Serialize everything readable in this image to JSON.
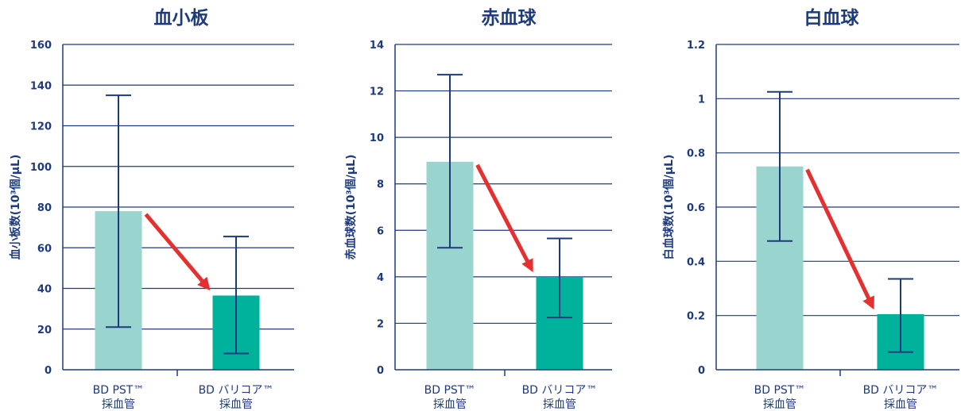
{
  "colors": {
    "axis": "#1d3a7c",
    "grid": "#1d3a7c",
    "bar_pst": "#99d4cf",
    "bar_vari": "#00b29b",
    "arrow": "#e53030"
  },
  "chart_data": [
    {
      "type": "bar",
      "title": "血小板",
      "ylabel": "血小板数(10³個/μL)",
      "xlabel": "",
      "ylim": [
        0,
        160
      ],
      "yticks": [
        "0",
        "20",
        "40",
        "60",
        "80",
        "100",
        "120",
        "140",
        "160"
      ],
      "categories": [
        [
          "BD PST™",
          "採血管"
        ],
        [
          "BD バリコア™",
          "採血管"
        ]
      ],
      "values": [
        78,
        36.5
      ],
      "error_low": [
        21,
        8
      ],
      "error_high": [
        135,
        65.5
      ],
      "grid": true,
      "trend_arrow": true
    },
    {
      "type": "bar",
      "title": "赤血球",
      "ylabel": "赤血球数(10³個/μL)",
      "xlabel": "",
      "ylim": [
        0,
        14
      ],
      "yticks": [
        "0",
        "2",
        "4",
        "6",
        "8",
        "10",
        "12",
        "14"
      ],
      "categories": [
        [
          "BD PST™",
          "採血管"
        ],
        [
          "BD バリコア™",
          "採血管"
        ]
      ],
      "values": [
        8.95,
        4.0
      ],
      "error_low": [
        5.25,
        2.25
      ],
      "error_high": [
        12.7,
        5.65
      ],
      "grid": true,
      "trend_arrow": true
    },
    {
      "type": "bar",
      "title": "白血球",
      "ylabel": "白血球数(10³個/μL)",
      "xlabel": "",
      "ylim": [
        0,
        1.2
      ],
      "yticks": [
        "0",
        "0.2",
        "0.4",
        "0.6",
        "0.8",
        "1",
        "1.2"
      ],
      "categories": [
        [
          "BD PST™",
          "採血管"
        ],
        [
          "BD バリコア™",
          "採血管"
        ]
      ],
      "values": [
        0.75,
        0.205
      ],
      "error_low": [
        0.475,
        0.065
      ],
      "error_high": [
        1.025,
        0.335
      ],
      "grid": true,
      "trend_arrow": true
    }
  ]
}
